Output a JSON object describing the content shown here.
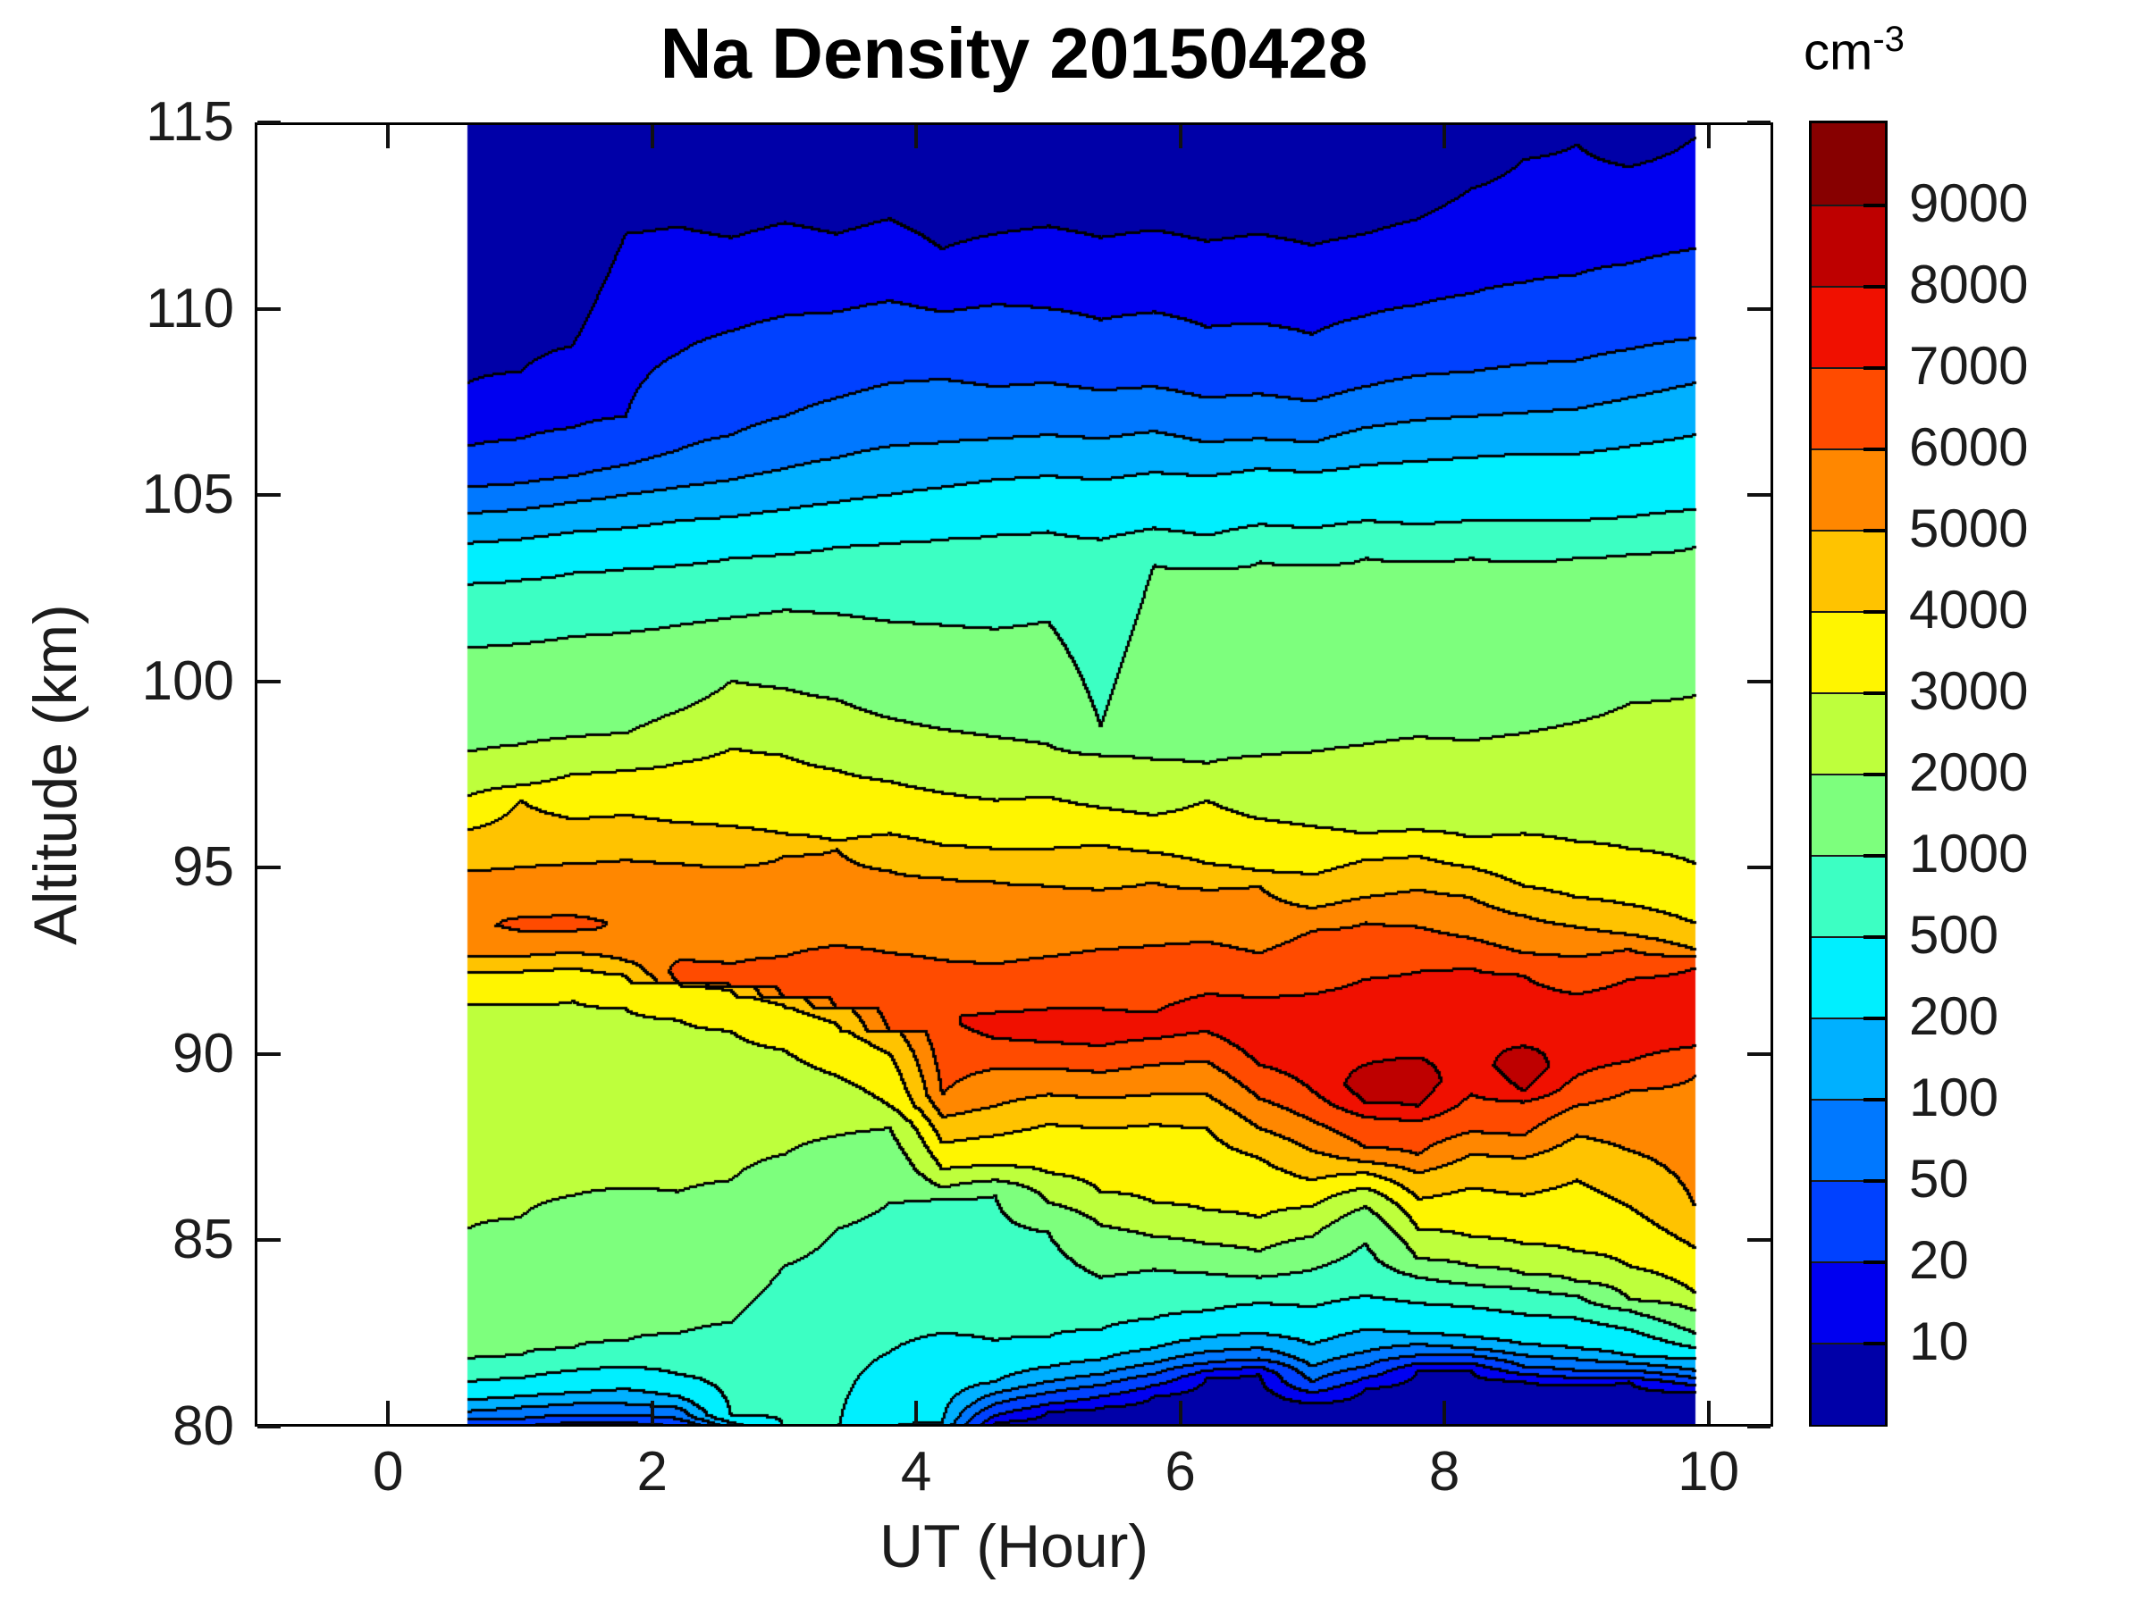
{
  "chart_data": {
    "type": "filled_contour",
    "title": "Na Density 20150428",
    "xlabel": "UT (Hour)",
    "ylabel": "Altitude (km)",
    "axes": {
      "x": {
        "range": [
          -1.01,
          10.49
        ],
        "ticks": [
          0,
          2,
          4,
          6,
          8,
          10
        ],
        "tick_labels": [
          "0",
          "2",
          "4",
          "6",
          "8",
          "10"
        ]
      },
      "y": {
        "range": [
          80,
          115
        ],
        "ticks": [
          80,
          85,
          90,
          95,
          100,
          105,
          110,
          115
        ],
        "tick_labels": [
          "80",
          "85",
          "90",
          "95",
          "100",
          "105",
          "110",
          "115"
        ]
      }
    },
    "data_time_extent": [
      0.6,
      9.9
    ],
    "colorbar": {
      "unit": "cm",
      "unit_exponent": "-3",
      "tick_labels": [
        "10",
        "20",
        "50",
        "100",
        "200",
        "500",
        "1000",
        "2000",
        "3000",
        "4000",
        "5000",
        "6000",
        "7000",
        "8000",
        "9000"
      ]
    },
    "levels": [
      10,
      20,
      50,
      100,
      200,
      500,
      1000,
      2000,
      3000,
      4000,
      5000,
      6000,
      7000,
      8000,
      9000
    ],
    "band_colors": [
      "#0000A8",
      "#0000F0",
      "#0041FF",
      "#0078FF",
      "#00B0FF",
      "#00EFFF",
      "#3CFFC3",
      "#7DFF7D",
      "#BEFF3C",
      "#FFF500",
      "#FFC300",
      "#FF8700",
      "#FF4B00",
      "#F01000",
      "#BE0000",
      "#870000"
    ],
    "x": [
      0.6,
      1.0,
      1.4,
      1.8,
      2.2,
      2.6,
      3.0,
      3.4,
      3.8,
      4.2,
      4.6,
      5.0,
      5.4,
      5.8,
      6.2,
      6.6,
      7.0,
      7.4,
      7.8,
      8.2,
      8.6,
      9.0,
      9.4,
      9.9
    ],
    "upper": {
      "10": [
        108.0,
        108.3,
        109.0,
        112.0,
        112.2,
        111.9,
        112.3,
        112.0,
        112.4,
        111.6,
        112.0,
        112.2,
        111.9,
        112.1,
        111.8,
        112.0,
        111.7,
        112.0,
        112.4,
        113.2,
        114.0,
        114.4,
        113.8,
        114.6
      ],
      "20": [
        106.3,
        106.5,
        106.8,
        107.1,
        108.8,
        109.4,
        109.8,
        109.9,
        110.2,
        109.9,
        110.1,
        110.0,
        109.7,
        109.9,
        109.5,
        109.6,
        109.3,
        109.8,
        110.1,
        110.4,
        110.7,
        110.9,
        111.2,
        111.6
      ],
      "50": [
        105.2,
        105.3,
        105.5,
        105.8,
        106.2,
        106.6,
        107.1,
        107.6,
        108.0,
        108.1,
        107.9,
        108.0,
        107.8,
        107.9,
        107.6,
        107.7,
        107.5,
        107.9,
        108.2,
        108.3,
        108.5,
        108.6,
        108.9,
        109.2
      ],
      "100": [
        104.5,
        104.6,
        104.8,
        105.0,
        105.2,
        105.4,
        105.7,
        106.0,
        106.3,
        106.4,
        106.5,
        106.6,
        106.5,
        106.7,
        106.4,
        106.5,
        106.4,
        106.8,
        107.0,
        107.1,
        107.2,
        107.3,
        107.6,
        108.0
      ],
      "200": [
        103.7,
        103.8,
        104.0,
        104.1,
        104.3,
        104.4,
        104.6,
        104.8,
        105.0,
        105.2,
        105.4,
        105.5,
        105.4,
        105.6,
        105.5,
        105.7,
        105.6,
        105.8,
        105.9,
        106.0,
        106.1,
        106.1,
        106.3,
        106.6
      ],
      "500": [
        102.6,
        102.7,
        102.9,
        103.0,
        103.1,
        103.3,
        103.4,
        103.6,
        103.7,
        103.8,
        103.9,
        104.0,
        103.8,
        104.1,
        103.9,
        104.2,
        104.1,
        104.3,
        104.2,
        104.3,
        104.3,
        104.3,
        104.4,
        104.6
      ],
      "1000": [
        100.9,
        101.0,
        101.2,
        101.3,
        101.5,
        101.7,
        101.9,
        101.8,
        101.6,
        101.5,
        101.4,
        101.6,
        98.8,
        103.1,
        103.0,
        103.2,
        103.1,
        103.3,
        103.2,
        103.3,
        103.2,
        103.3,
        103.4,
        103.6
      ],
      "2000": [
        98.1,
        98.3,
        98.5,
        98.6,
        99.2,
        100.0,
        99.8,
        99.5,
        99.0,
        98.7,
        98.5,
        98.3,
        98.0,
        97.9,
        97.8,
        98.0,
        98.1,
        98.3,
        98.5,
        98.4,
        98.6,
        98.9,
        99.4,
        99.6
      ],
      "3000": [
        96.9,
        97.2,
        97.5,
        97.6,
        97.8,
        98.2,
        98.0,
        97.6,
        97.3,
        97.0,
        96.8,
        96.9,
        96.6,
        96.4,
        96.8,
        96.3,
        96.1,
        95.9,
        96.0,
        95.8,
        95.9,
        95.7,
        95.5,
        95.1
      ],
      "4000": [
        96.0,
        96.8,
        96.3,
        96.4,
        96.2,
        96.1,
        95.9,
        95.7,
        95.9,
        95.6,
        95.5,
        95.5,
        95.6,
        95.4,
        95.1,
        94.9,
        94.8,
        95.2,
        95.3,
        95.0,
        94.5,
        94.2,
        94.0,
        93.5
      ],
      "5000": [
        94.9,
        95.0,
        95.1,
        95.2,
        95.1,
        95.0,
        95.3,
        95.5,
        94.9,
        94.7,
        94.6,
        94.5,
        94.4,
        94.6,
        94.4,
        94.5,
        93.9,
        94.2,
        94.4,
        94.2,
        93.7,
        93.4,
        93.2,
        92.8
      ],
      "6000": [
        null,
        93.65,
        93.7,
        null,
        92.5,
        92.4,
        92.6,
        92.9,
        92.7,
        92.5,
        92.4,
        92.6,
        92.8,
        92.9,
        93.0,
        92.7,
        93.3,
        93.5,
        93.4,
        93.1,
        92.7,
        92.6,
        92.8,
        92.6
      ],
      "7000": [
        null,
        null,
        null,
        null,
        null,
        null,
        null,
        null,
        null,
        null,
        91.1,
        91.2,
        91.2,
        91.1,
        91.6,
        91.5,
        91.6,
        92.0,
        92.2,
        92.3,
        92.1,
        91.6,
        92.0,
        92.3
      ],
      "8000": [
        null,
        null,
        null,
        null,
        null,
        null,
        null,
        null,
        null,
        null,
        null,
        null,
        null,
        null,
        null,
        null,
        null,
        89.7,
        89.9,
        null,
        90.2,
        null,
        null,
        null
      ]
    },
    "peak": {
      "altitude": [
        93.6,
        93.45,
        93.5,
        93.2,
        92.2,
        92.1,
        92.0,
        91.9,
        91.6,
        91.0,
        90.8,
        90.7,
        90.6,
        90.8,
        90.9,
        90.6,
        90.4,
        89.2,
        89.3,
        90.5,
        89.7,
        90.5,
        90.8,
        91.2
      ],
      "value": [
        5700,
        6350,
        6400,
        5950,
        6500,
        6600,
        6700,
        6800,
        6900,
        6950,
        7300,
        7350,
        7300,
        7500,
        7700,
        7800,
        7900,
        8600,
        8700,
        7900,
        8800,
        7900,
        7800,
        7600
      ]
    },
    "lower": {
      "8000": [
        null,
        null,
        null,
        null,
        null,
        null,
        null,
        null,
        null,
        null,
        null,
        null,
        null,
        null,
        null,
        null,
        null,
        88.7,
        88.6,
        null,
        89.0,
        null,
        null,
        null
      ],
      "7000": [
        null,
        null,
        null,
        null,
        null,
        null,
        null,
        null,
        null,
        null,
        90.4,
        90.3,
        90.2,
        90.4,
        90.6,
        89.7,
        89.0,
        88.3,
        88.2,
        88.9,
        88.7,
        89.4,
        89.8,
        90.2
      ],
      "6000": [
        null,
        93.3,
        93.3,
        null,
        91.9,
        91.8,
        91.5,
        91.2,
        90.6,
        88.9,
        89.6,
        89.6,
        89.5,
        89.7,
        89.8,
        88.8,
        88.2,
        87.5,
        87.3,
        87.9,
        87.8,
        88.6,
        89.0,
        89.4
      ],
      "5000": [
        92.6,
        92.6,
        92.7,
        92.5,
        92.3,
        92.2,
        91.9,
        91.6,
        90.9,
        88.3,
        88.6,
        88.9,
        88.8,
        88.9,
        88.9,
        88.0,
        87.4,
        87.1,
        86.8,
        87.3,
        87.2,
        87.8,
        87.4,
        85.9
      ],
      "4000": [
        92.2,
        92.2,
        92.3,
        92.1,
        91.9,
        91.7,
        91.3,
        90.8,
        90.0,
        87.6,
        87.8,
        88.1,
        88.0,
        88.1,
        88.0,
        87.2,
        86.6,
        86.8,
        86.1,
        86.4,
        86.2,
        86.6,
        85.9,
        84.8
      ],
      "3000": [
        91.3,
        91.3,
        91.4,
        91.2,
        90.9,
        90.6,
        90.1,
        89.4,
        88.6,
        86.9,
        87.0,
        86.8,
        86.3,
        86.0,
        85.8,
        85.6,
        85.9,
        86.4,
        85.3,
        85.1,
        84.9,
        84.7,
        84.3,
        83.6
      ],
      "2000": [
        85.3,
        85.6,
        86.2,
        86.4,
        86.3,
        86.6,
        87.3,
        87.8,
        88.0,
        86.4,
        86.6,
        86.0,
        85.4,
        85.1,
        84.9,
        84.7,
        85.1,
        85.9,
        84.5,
        84.3,
        84.1,
        83.9,
        83.4,
        83.1
      ],
      "1000": [
        81.8,
        81.9,
        82.1,
        82.3,
        82.5,
        82.8,
        84.3,
        85.3,
        86.0,
        86.1,
        86.2,
        85.2,
        84.0,
        84.2,
        84.1,
        84.0,
        84.2,
        84.9,
        84.0,
        83.8,
        83.7,
        83.5,
        83.1,
        82.5
      ],
      "500": [
        81.2,
        81.3,
        81.5,
        81.6,
        81.4,
        80.3,
        79.8,
        79.7,
        82.0,
        82.5,
        82.3,
        82.4,
        82.6,
        82.9,
        83.1,
        83.3,
        83.2,
        83.5,
        83.3,
        83.2,
        83.0,
        82.9,
        82.6,
        82.1
      ],
      "200": [
        80.7,
        80.8,
        80.9,
        81.0,
        80.8,
        80.1,
        79.6,
        79.6,
        79.9,
        80.1,
        81.2,
        81.6,
        81.8,
        82.1,
        82.4,
        82.5,
        82.2,
        82.6,
        82.5,
        82.4,
        82.2,
        82.1,
        81.9,
        81.8
      ],
      "100": [
        80.4,
        80.5,
        80.6,
        80.6,
        80.5,
        79.9,
        79.4,
        79.4,
        79.6,
        79.9,
        80.9,
        81.2,
        81.4,
        81.7,
        82.0,
        82.1,
        81.6,
        82.0,
        82.2,
        82.1,
        81.9,
        81.8,
        81.7,
        81.5
      ],
      "50": [
        80.2,
        80.2,
        80.3,
        80.3,
        80.2,
        79.7,
        79.2,
        79.2,
        79.4,
        79.7,
        80.6,
        80.9,
        81.1,
        81.4,
        81.7,
        81.8,
        81.2,
        81.6,
        81.9,
        81.9,
        81.6,
        81.5,
        81.5,
        81.3
      ],
      "20": [
        80.0,
        80.0,
        80.1,
        80.1,
        80.0,
        79.5,
        79.0,
        79.0,
        79.2,
        79.5,
        80.3,
        80.6,
        80.8,
        81.1,
        81.5,
        81.6,
        80.9,
        81.3,
        81.7,
        81.7,
        81.4,
        81.3,
        81.3,
        81.1
      ],
      "10": [
        79.8,
        79.8,
        79.9,
        79.9,
        79.8,
        79.3,
        78.8,
        78.8,
        79.0,
        79.3,
        80.1,
        80.4,
        80.5,
        80.8,
        81.3,
        81.4,
        80.6,
        81.0,
        81.5,
        81.5,
        81.2,
        81.1,
        81.2,
        80.9
      ]
    }
  }
}
